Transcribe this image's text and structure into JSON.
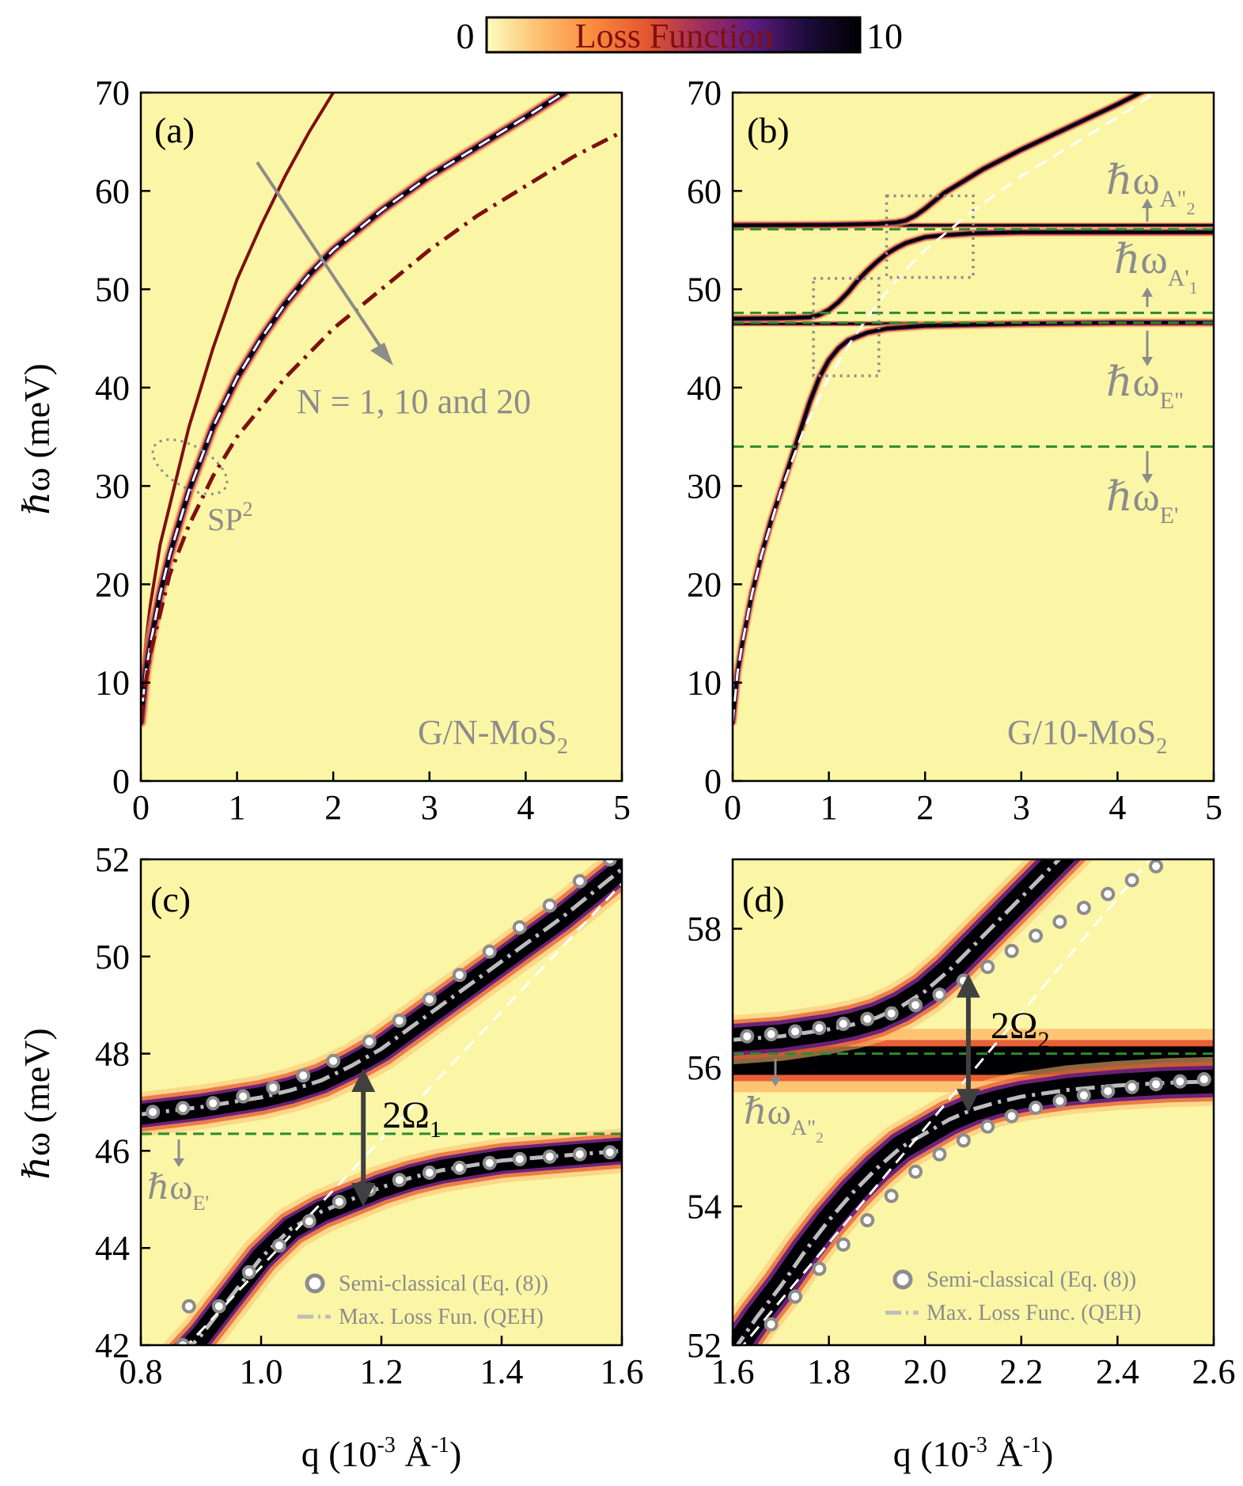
{
  "colorbar": {
    "min_label": "0",
    "max_label": "10",
    "label": "Loss Function",
    "colors": [
      "#fcfdbf",
      "#fdbf6f",
      "#fb8a3c",
      "#e4562f",
      "#a02e5e",
      "#5c1b7e",
      "#1c0c3a",
      "#000004"
    ]
  },
  "colors": {
    "background": "#fbf6a6",
    "dark_red": "#7f1010",
    "green_dash": "#2e8b2e",
    "gray_text": "#8c8c8c",
    "dark_arrow": "#404040",
    "dispersion_core": "#000004"
  },
  "chart_data": [
    {
      "id": "a",
      "type": "heatmap",
      "panel_label": "(a)",
      "xlim": [
        0,
        5
      ],
      "ylim": [
        0,
        70
      ],
      "xticks": [
        0,
        1,
        2,
        3,
        4,
        5
      ],
      "yticks": [
        0,
        10,
        20,
        30,
        40,
        50,
        60,
        70
      ],
      "tick_labels_x": [
        "0",
        "1",
        "2",
        "3",
        "4",
        "5"
      ],
      "tick_labels_y": [
        "0",
        "10",
        "20",
        "30",
        "40",
        "50",
        "60",
        "70"
      ],
      "ylabel": "ℏω (meV)",
      "annotations": {
        "structure_main": "G/N-MoS",
        "structure_sub": "2",
        "n_label": "N = 1, 10 and 20",
        "sp_main": "SP",
        "sp_sup": "2"
      },
      "series": [
        {
          "kind": "solid_dark_red",
          "x": [
            0.0,
            0.05,
            0.1,
            0.2,
            0.3,
            0.5,
            0.75,
            1.0,
            1.25,
            1.5,
            1.75,
            2.0,
            2.05
          ],
          "y": [
            8,
            14,
            18,
            24,
            28,
            36,
            44,
            51,
            56.5,
            61.5,
            66,
            70,
            70.5
          ]
        },
        {
          "kind": "dispersion_dark",
          "x": [
            0.0,
            0.05,
            0.1,
            0.2,
            0.3,
            0.5,
            0.75,
            1.0,
            1.25,
            1.5,
            1.75,
            2.0,
            2.5,
            3.0,
            3.5,
            4.0,
            4.4
          ],
          "y": [
            6,
            11,
            14,
            19,
            23,
            29.5,
            36,
            41,
            45,
            48.5,
            51.5,
            54,
            58,
            61.5,
            64.5,
            67.5,
            70
          ]
        },
        {
          "kind": "dashdot_dark_red",
          "x": [
            0.0,
            0.05,
            0.1,
            0.2,
            0.3,
            0.5,
            0.75,
            1.0,
            1.5,
            2.0,
            2.5,
            3.0,
            3.5,
            4.0,
            4.5,
            5.0
          ],
          "y": [
            6,
            10,
            13,
            17,
            21,
            26,
            31,
            35,
            41,
            46,
            50,
            54,
            57.5,
            60.5,
            63.5,
            66
          ]
        }
      ]
    },
    {
      "id": "b",
      "type": "heatmap",
      "panel_label": "(b)",
      "xlim": [
        0,
        5
      ],
      "ylim": [
        0,
        70
      ],
      "xticks": [
        0,
        1,
        2,
        3,
        4,
        5
      ],
      "yticks": [
        0,
        10,
        20,
        30,
        40,
        50,
        60,
        70
      ],
      "tick_labels_x": [
        "0",
        "1",
        "2",
        "3",
        "4",
        "5"
      ],
      "tick_labels_y": [
        "0",
        "10",
        "20",
        "30",
        "40",
        "50",
        "60",
        "70"
      ],
      "annotations": {
        "structure_main": "G/10-MoS",
        "structure_sub": "2",
        "phonon_labels": [
          {
            "main": "ℏω",
            "sub": "A\"",
            "subsub": "2",
            "y": 60
          },
          {
            "main": "ℏω",
            "sub": "A'",
            "subsub": "1",
            "y": 52.5
          },
          {
            "main": "ℏω",
            "sub": "E\"",
            "subsub": "",
            "y": 40
          },
          {
            "main": "ℏω",
            "sub": "E'",
            "subsub": "",
            "y": 28.5
          }
        ]
      },
      "phonon_lines": [
        56.1,
        47.6,
        46.6,
        34.0
      ],
      "zoom_boxes": [
        {
          "x": [
            0.84,
            1.52
          ],
          "y": [
            41.2,
            51.1
          ]
        },
        {
          "x": [
            1.6,
            2.5
          ],
          "y": [
            51.2,
            59.5
          ]
        }
      ],
      "branches": [
        {
          "x": [
            0.0,
            0.05,
            0.1,
            0.2,
            0.3,
            0.4,
            0.5,
            0.6,
            0.7,
            0.8,
            0.9,
            1.0,
            1.1,
            1.2,
            1.4,
            1.6,
            2.0,
            3.0,
            4.0,
            5.0
          ],
          "y": [
            6,
            11,
            14,
            19,
            23,
            26.5,
            29.5,
            32.5,
            35.5,
            38.5,
            41,
            42.8,
            44,
            44.8,
            45.6,
            46.0,
            46.3,
            46.5,
            46.6,
            46.6
          ]
        },
        {
          "x": [
            0.0,
            0.5,
            0.8,
            0.9,
            1.0,
            1.1,
            1.2,
            1.3,
            1.4,
            1.5,
            1.6,
            1.7,
            1.8,
            1.9,
            2.0,
            2.2,
            2.5,
            3.0,
            4.0,
            5.0
          ],
          "y": [
            47.0,
            47.05,
            47.15,
            47.4,
            47.9,
            48.7,
            49.7,
            50.9,
            51.9,
            52.8,
            53.6,
            54.2,
            54.7,
            55.0,
            55.3,
            55.5,
            55.7,
            55.8,
            55.8,
            55.8
          ]
        },
        {
          "x": [
            0.0,
            1.0,
            1.5,
            1.7,
            1.8,
            1.9,
            2.0,
            2.1,
            2.2,
            2.4,
            2.6,
            3.0,
            3.5,
            4.0,
            4.2,
            4.3
          ],
          "y": [
            56.5,
            56.55,
            56.65,
            56.8,
            57.0,
            57.5,
            58.2,
            59.0,
            59.8,
            61.0,
            62.2,
            64.2,
            66.5,
            68.8,
            69.8,
            70.3
          ]
        }
      ],
      "flat_branches": [
        56.5,
        46.5
      ]
    },
    {
      "id": "c",
      "type": "heatmap",
      "panel_label": "(c)",
      "xlim": [
        0.8,
        1.6
      ],
      "ylim": [
        42,
        52
      ],
      "xticks": [
        0.8,
        1.0,
        1.2,
        1.4,
        1.6
      ],
      "yticks": [
        42,
        44,
        46,
        48,
        50,
        52
      ],
      "tick_labels_x": [
        "0.8",
        "1.0",
        "1.2",
        "1.4",
        "1.6"
      ],
      "tick_labels_y": [
        "42",
        "44",
        "46",
        "48",
        "50",
        "52"
      ],
      "ylabel": "ℏω (meV)",
      "xlabel": "q (10-3 Å-1)",
      "annotations": {
        "splitting_main": "2Ω",
        "splitting_sub": "1",
        "phonon_main": "ℏω",
        "phonon_sub": "E'",
        "legend_semiclassical": "Semi-classical (Eq. (8))",
        "legend_qeh": "Max. Loss Fun. (QEH)"
      },
      "phonon_line": 46.35,
      "splitting_x": 1.17,
      "splitting_y": [
        44.85,
        47.7
      ],
      "upper_branch": {
        "x": [
          0.8,
          0.9,
          1.0,
          1.05,
          1.1,
          1.15,
          1.2,
          1.25,
          1.3,
          1.35,
          1.4,
          1.45,
          1.5,
          1.55,
          1.6
        ],
        "y": [
          46.75,
          46.9,
          47.1,
          47.25,
          47.45,
          47.75,
          48.1,
          48.55,
          49.0,
          49.45,
          49.9,
          50.35,
          50.8,
          51.3,
          51.8
        ]
      },
      "lower_branch": {
        "x": [
          0.87,
          0.9,
          0.95,
          1.0,
          1.05,
          1.1,
          1.15,
          1.2,
          1.25,
          1.3,
          1.35,
          1.4,
          1.5,
          1.6
        ],
        "y": [
          41.8,
          42.2,
          43.0,
          43.8,
          44.4,
          44.75,
          45.0,
          45.25,
          45.45,
          45.6,
          45.7,
          45.8,
          45.9,
          46.0
        ]
      },
      "white_dashed": {
        "x": [
          0.87,
          1.6
        ],
        "y": [
          41.9,
          51.5
        ]
      },
      "semiclassical_points": {
        "x_upper": [
          0.82,
          0.87,
          0.92,
          0.97,
          1.02,
          1.07,
          1.12,
          1.18,
          1.23,
          1.28,
          1.33,
          1.38,
          1.43,
          1.48,
          1.53,
          1.58
        ],
        "y_upper": [
          46.8,
          46.88,
          46.98,
          47.12,
          47.3,
          47.55,
          47.85,
          48.25,
          48.68,
          49.12,
          49.62,
          50.1,
          50.6,
          51.05,
          51.55,
          52.0
        ],
        "x_lower": [
          0.87,
          0.88,
          0.93,
          0.98,
          1.03,
          1.08,
          1.13,
          1.18,
          1.23,
          1.28,
          1.33,
          1.38,
          1.43,
          1.48,
          1.53,
          1.58
        ],
        "y_lower": [
          42.0,
          42.8,
          42.8,
          43.5,
          44.05,
          44.55,
          44.95,
          45.2,
          45.4,
          45.55,
          45.65,
          45.75,
          45.83,
          45.88,
          45.93,
          45.97
        ]
      }
    },
    {
      "id": "d",
      "type": "heatmap",
      "panel_label": "(d)",
      "xlim": [
        1.6,
        2.6
      ],
      "ylim": [
        52,
        59
      ],
      "xticks": [
        1.6,
        1.8,
        2.0,
        2.2,
        2.4,
        2.6
      ],
      "yticks": [
        52,
        54,
        56,
        58
      ],
      "tick_labels_x": [
        "1.6",
        "1.8",
        "2.0",
        "2.2",
        "2.4",
        "2.6"
      ],
      "tick_labels_y": [
        "52",
        "54",
        "56",
        "58"
      ],
      "xlabel": "q (10-3 Å-1)",
      "annotations": {
        "splitting_main": "2Ω",
        "splitting_sub": "2",
        "phonon_main": "ℏω",
        "phonon_sub": "A\"",
        "phonon_subsub": "2",
        "legend_semiclassical": "Semi-classical (Eq. (8))",
        "legend_qeh": "Max. Loss Func. (QEH)"
      },
      "phonon_line": 56.2,
      "flat_band": 56.1,
      "splitting_x": 2.09,
      "splitting_y": [
        55.35,
        57.35
      ],
      "upper_branch": {
        "x": [
          1.6,
          1.7,
          1.8,
          1.85,
          1.9,
          1.95,
          2.0,
          2.05,
          2.1,
          2.15,
          2.2,
          2.25,
          2.3,
          2.35,
          2.4
        ],
        "y": [
          56.4,
          56.45,
          56.55,
          56.62,
          56.72,
          56.88,
          57.1,
          57.4,
          57.75,
          58.1,
          58.45,
          58.8,
          59.15,
          59.5,
          59.85
        ]
      },
      "lower_branch": {
        "x": [
          1.6,
          1.65,
          1.7,
          1.75,
          1.8,
          1.85,
          1.9,
          1.95,
          2.0,
          2.05,
          2.1,
          2.15,
          2.2,
          2.3,
          2.4,
          2.5,
          2.6
        ],
        "y": [
          51.9,
          52.4,
          52.85,
          53.35,
          53.8,
          54.2,
          54.55,
          54.85,
          55.05,
          55.25,
          55.4,
          55.5,
          55.58,
          55.68,
          55.74,
          55.78,
          55.8
        ]
      },
      "white_dashed": {
        "x": [
          1.61,
          2.48
        ],
        "y": [
          51.9,
          59.1
        ]
      },
      "semiclassical_points": {
        "x_upper": [
          1.63,
          1.68,
          1.73,
          1.78,
          1.83,
          1.88,
          1.93,
          1.98,
          2.03,
          2.08,
          2.13,
          2.18,
          2.23,
          2.28,
          2.33,
          2.38,
          2.43,
          2.48
        ],
        "y_upper": [
          56.45,
          56.48,
          56.52,
          56.57,
          56.63,
          56.7,
          56.78,
          56.9,
          57.05,
          57.25,
          57.45,
          57.68,
          57.9,
          58.1,
          58.3,
          58.5,
          58.7,
          58.9
        ],
        "x_lower": [
          1.68,
          1.73,
          1.78,
          1.83,
          1.88,
          1.93,
          1.98,
          2.03,
          2.08,
          2.13,
          2.18,
          2.23,
          2.28,
          2.33,
          2.38,
          2.43,
          2.48,
          2.53,
          2.58
        ],
        "y_lower": [
          52.3,
          52.7,
          53.1,
          53.45,
          53.8,
          54.15,
          54.5,
          54.75,
          54.95,
          55.15,
          55.3,
          55.42,
          55.52,
          55.6,
          55.66,
          55.72,
          55.76,
          55.8,
          55.83
        ]
      }
    }
  ]
}
